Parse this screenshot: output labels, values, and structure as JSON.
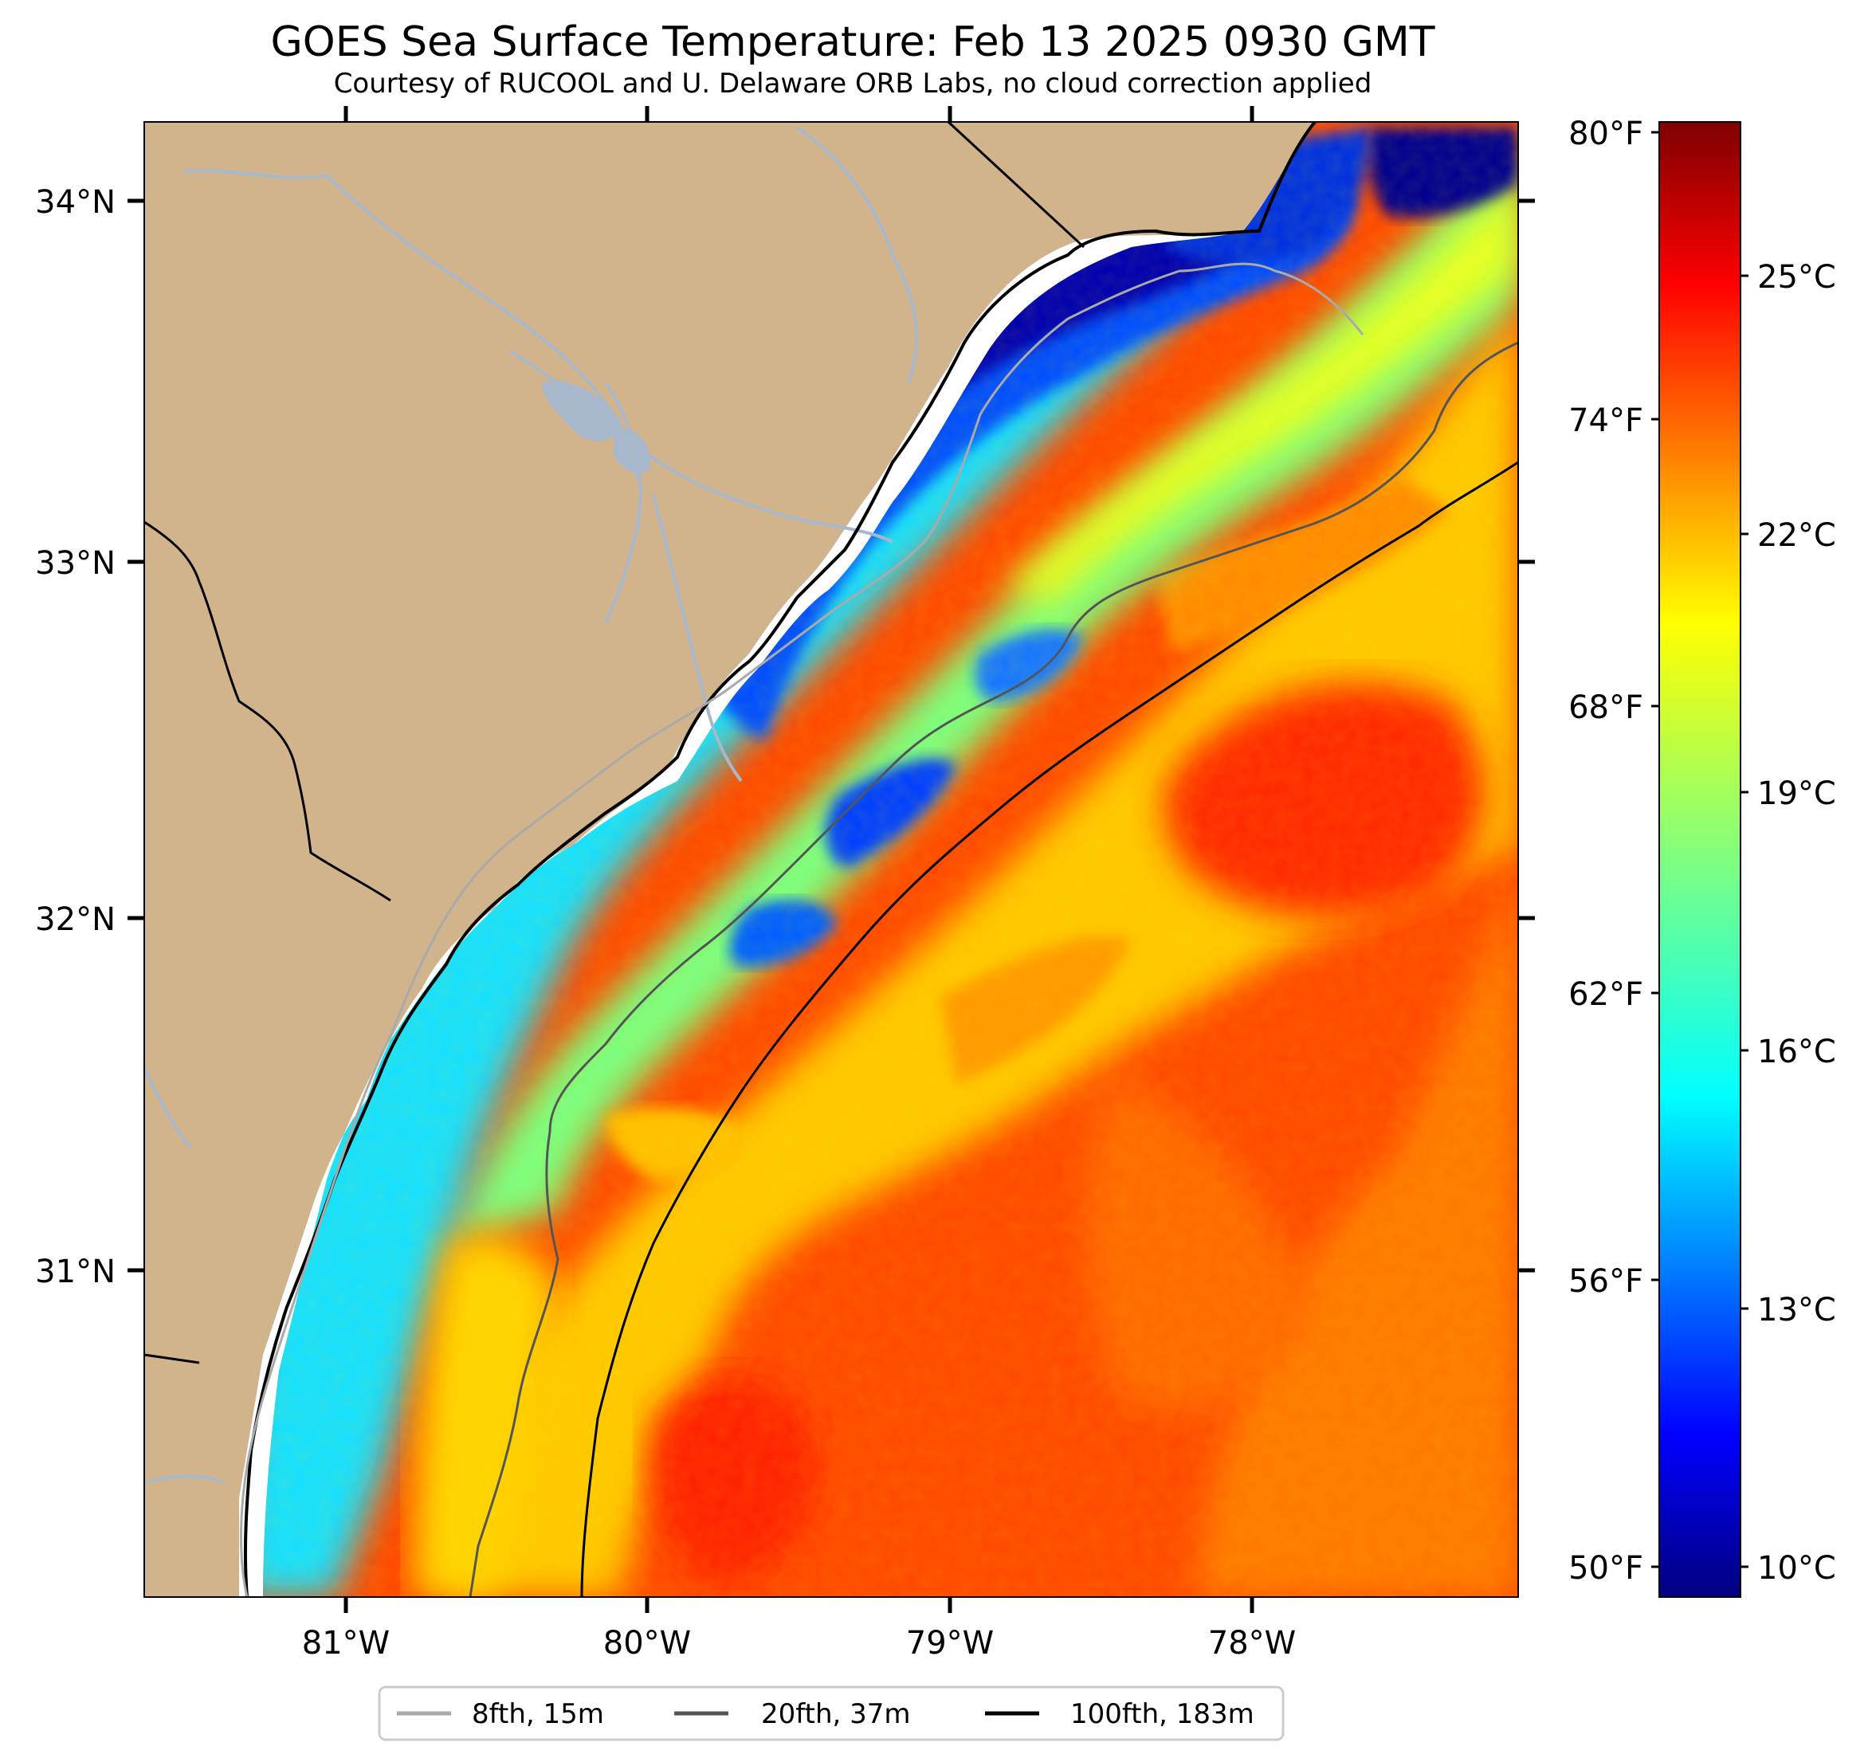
{
  "title": "GOES Sea Surface Temperature: Feb 13 2025 0930 GMT",
  "subtitle": "Courtesy of RUCOOL and U. Delaware ORB Labs, no cloud correction applied",
  "lat_labels": [
    "34°N",
    "33°N",
    "32°N",
    "31°N"
  ],
  "lon_labels": [
    "81°W",
    "80°W",
    "79°W",
    "78°W"
  ],
  "colorbar": {
    "fahrenheit_labels": [
      "80°F",
      "74°F",
      "68°F",
      "62°F",
      "56°F",
      "50°F"
    ],
    "celsius_labels": [
      "25°C",
      "22°C",
      "19°C",
      "16°C",
      "13°C",
      "10°C"
    ],
    "range_c": [
      9.5,
      27
    ],
    "colormap": "jet"
  },
  "legend": [
    {
      "label": "8fth, 15m",
      "color": "#aaaaaa"
    },
    {
      "label": "20fth, 37m",
      "color": "#555555"
    },
    {
      "label": "100fth, 183m",
      "color": "#000000"
    }
  ],
  "colors": {
    "land": "#d2b48c",
    "river": "#a8b8cc",
    "coast": "#000000",
    "cloud_gap": "#ffffff"
  }
}
